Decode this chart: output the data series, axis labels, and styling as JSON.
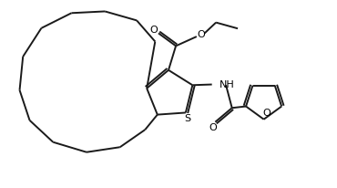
{
  "bg_color": "#ffffff",
  "line_color": "#1a1a1a",
  "line_width": 1.4,
  "figsize": [
    3.7,
    2.06
  ],
  "dpi": 100,
  "xlim": [
    0,
    10
  ],
  "ylim": [
    0,
    5.57
  ]
}
